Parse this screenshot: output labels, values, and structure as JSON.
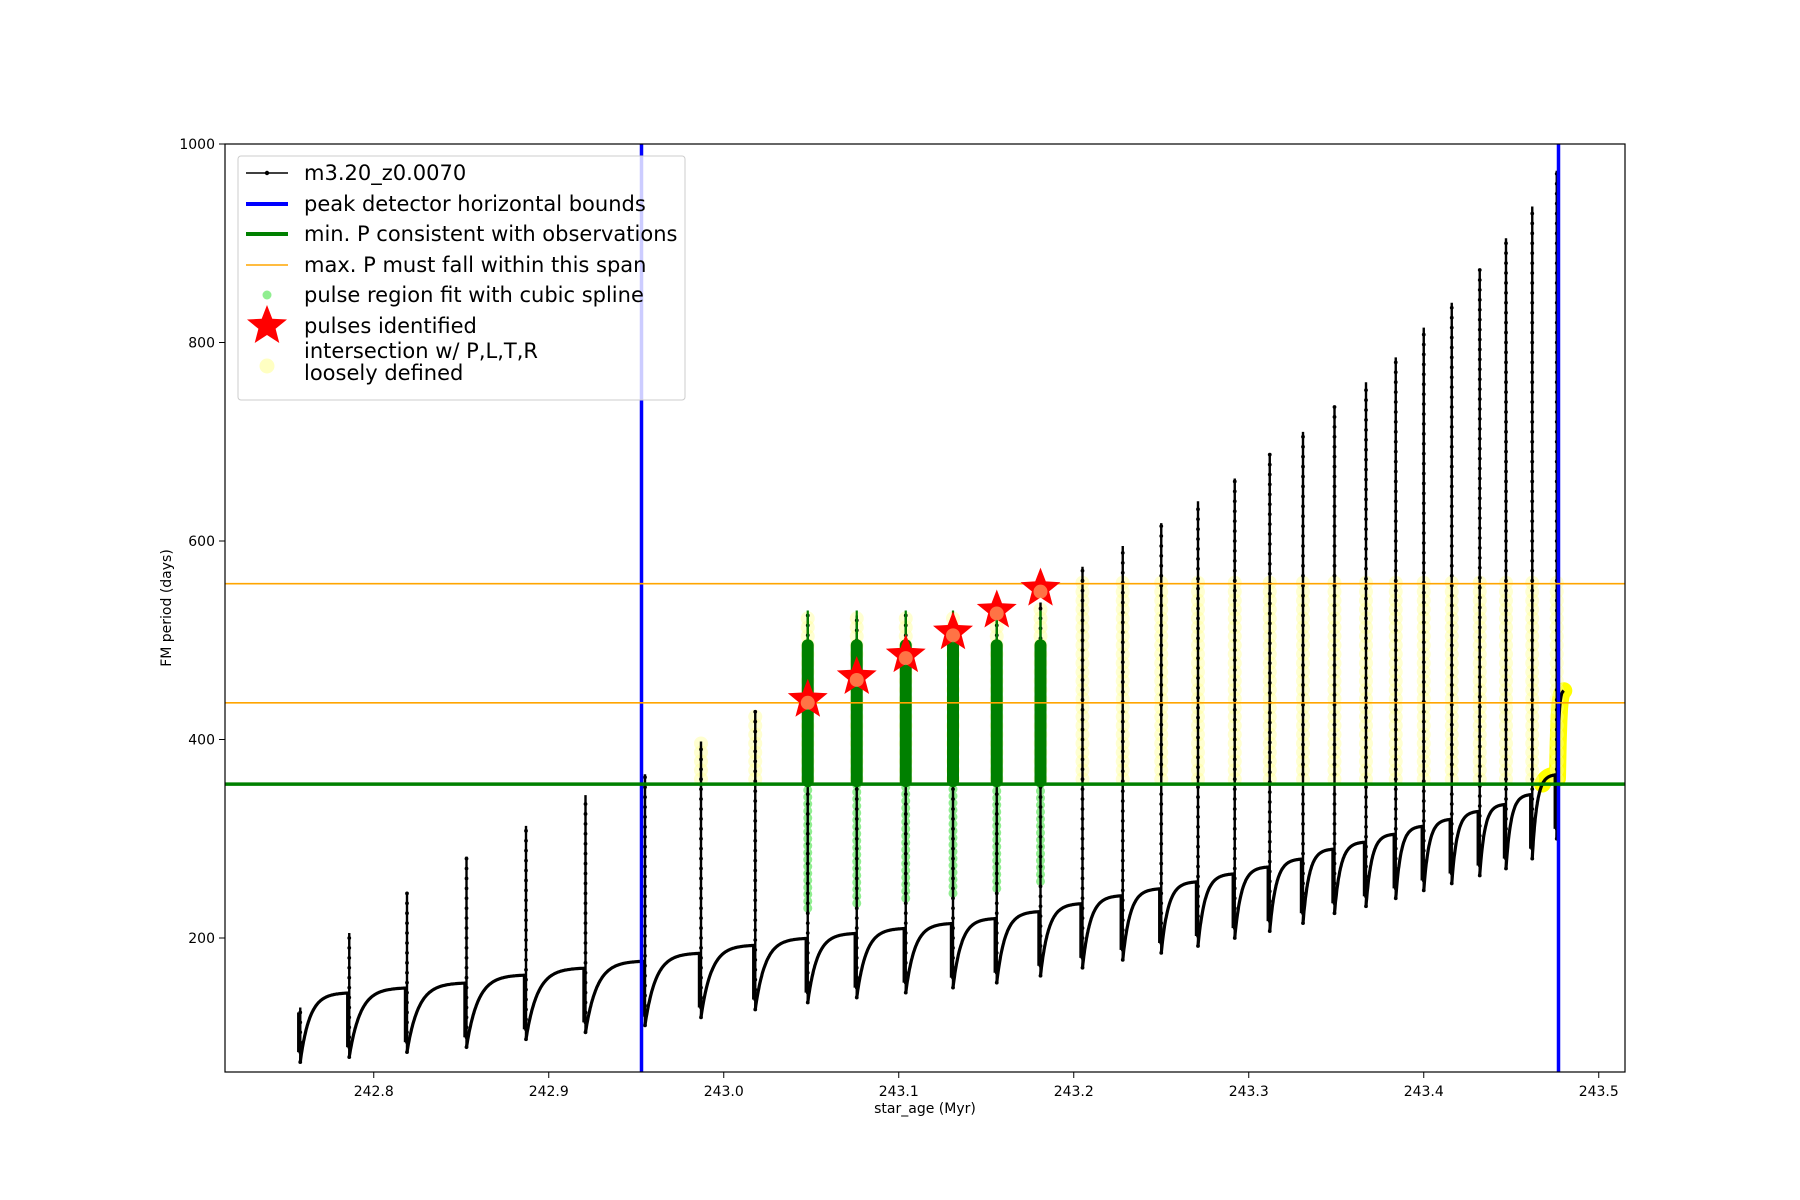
{
  "chart_data": {
    "type": "scatter",
    "xlabel": "star_age (Myr)",
    "ylabel": "FM period (days)",
    "xlim": [
      242.715,
      243.515
    ],
    "ylim": [
      65,
      1000
    ],
    "x_ticks": [
      242.8,
      242.9,
      243.0,
      243.1,
      243.2,
      243.3,
      243.4,
      243.5
    ],
    "x_tick_labels": [
      "242.8",
      "242.9",
      "243.0",
      "243.1",
      "243.2",
      "243.3",
      "243.4",
      "243.5"
    ],
    "y_ticks": [
      200,
      400,
      600,
      800,
      1000
    ],
    "y_tick_labels": [
      "200",
      "400",
      "600",
      "800",
      "1000"
    ],
    "grid": false,
    "legend_position": "top-left",
    "legend": [
      {
        "label": "m3.20_z0.0070",
        "marker": "line-dot",
        "color": "#000000"
      },
      {
        "label": "peak detector horizontal bounds",
        "marker": "thick-line",
        "color": "#0000ff"
      },
      {
        "label": "min. P consistent with observations",
        "marker": "thick-line",
        "color": "#008000"
      },
      {
        "label": "max. P must fall within this span",
        "marker": "thin-line",
        "color": "#ffa500"
      },
      {
        "label": "pulse region fit with cubic spline",
        "marker": "dot",
        "color": "#90ee90"
      },
      {
        "label": "pulses identified",
        "marker": "star",
        "color": "#ff0000"
      },
      {
        "label": "intersection w/ P,L,T,R\nloosely defined",
        "marker": "circle",
        "color": "#ffff99"
      }
    ],
    "vertical_bounds": [
      242.953,
      243.477
    ],
    "min_period": 355,
    "max_period_span": [
      437,
      557
    ],
    "pulse_ages": [
      242.758,
      242.786,
      242.819,
      242.853,
      242.887,
      242.921,
      242.955,
      242.987,
      243.018,
      243.048,
      243.076,
      243.104,
      243.131,
      243.156,
      243.181,
      243.205,
      243.228,
      243.25,
      243.271,
      243.292,
      243.312,
      243.331,
      243.349,
      243.367,
      243.384,
      243.4,
      243.416,
      243.432,
      243.447,
      243.462,
      243.476
    ],
    "pulse_minima": [
      75,
      80,
      85,
      90,
      98,
      105,
      112,
      120,
      128,
      135,
      140,
      145,
      150,
      155,
      162,
      170,
      178,
      185,
      192,
      200,
      207,
      215,
      225,
      232,
      240,
      248,
      255,
      263,
      270,
      280,
      300
    ],
    "pulse_peaks": [
      130,
      205,
      245,
      282,
      313,
      344,
      365,
      398,
      428,
      525,
      525,
      525,
      525,
      525,
      538,
      574,
      595,
      618,
      640,
      663,
      687,
      710,
      735,
      760,
      785,
      815,
      840,
      873,
      905,
      937,
      973
    ],
    "pulses_identified": [
      {
        "x": 243.048,
        "y": 440
      },
      {
        "x": 243.076,
        "y": 463
      },
      {
        "x": 243.104,
        "y": 485
      },
      {
        "x": 243.131,
        "y": 508
      },
      {
        "x": 243.156,
        "y": 530
      },
      {
        "x": 243.181,
        "y": 552
      }
    ],
    "fit_region_pulse_indices": [
      9,
      10,
      11,
      12,
      13,
      14
    ]
  }
}
